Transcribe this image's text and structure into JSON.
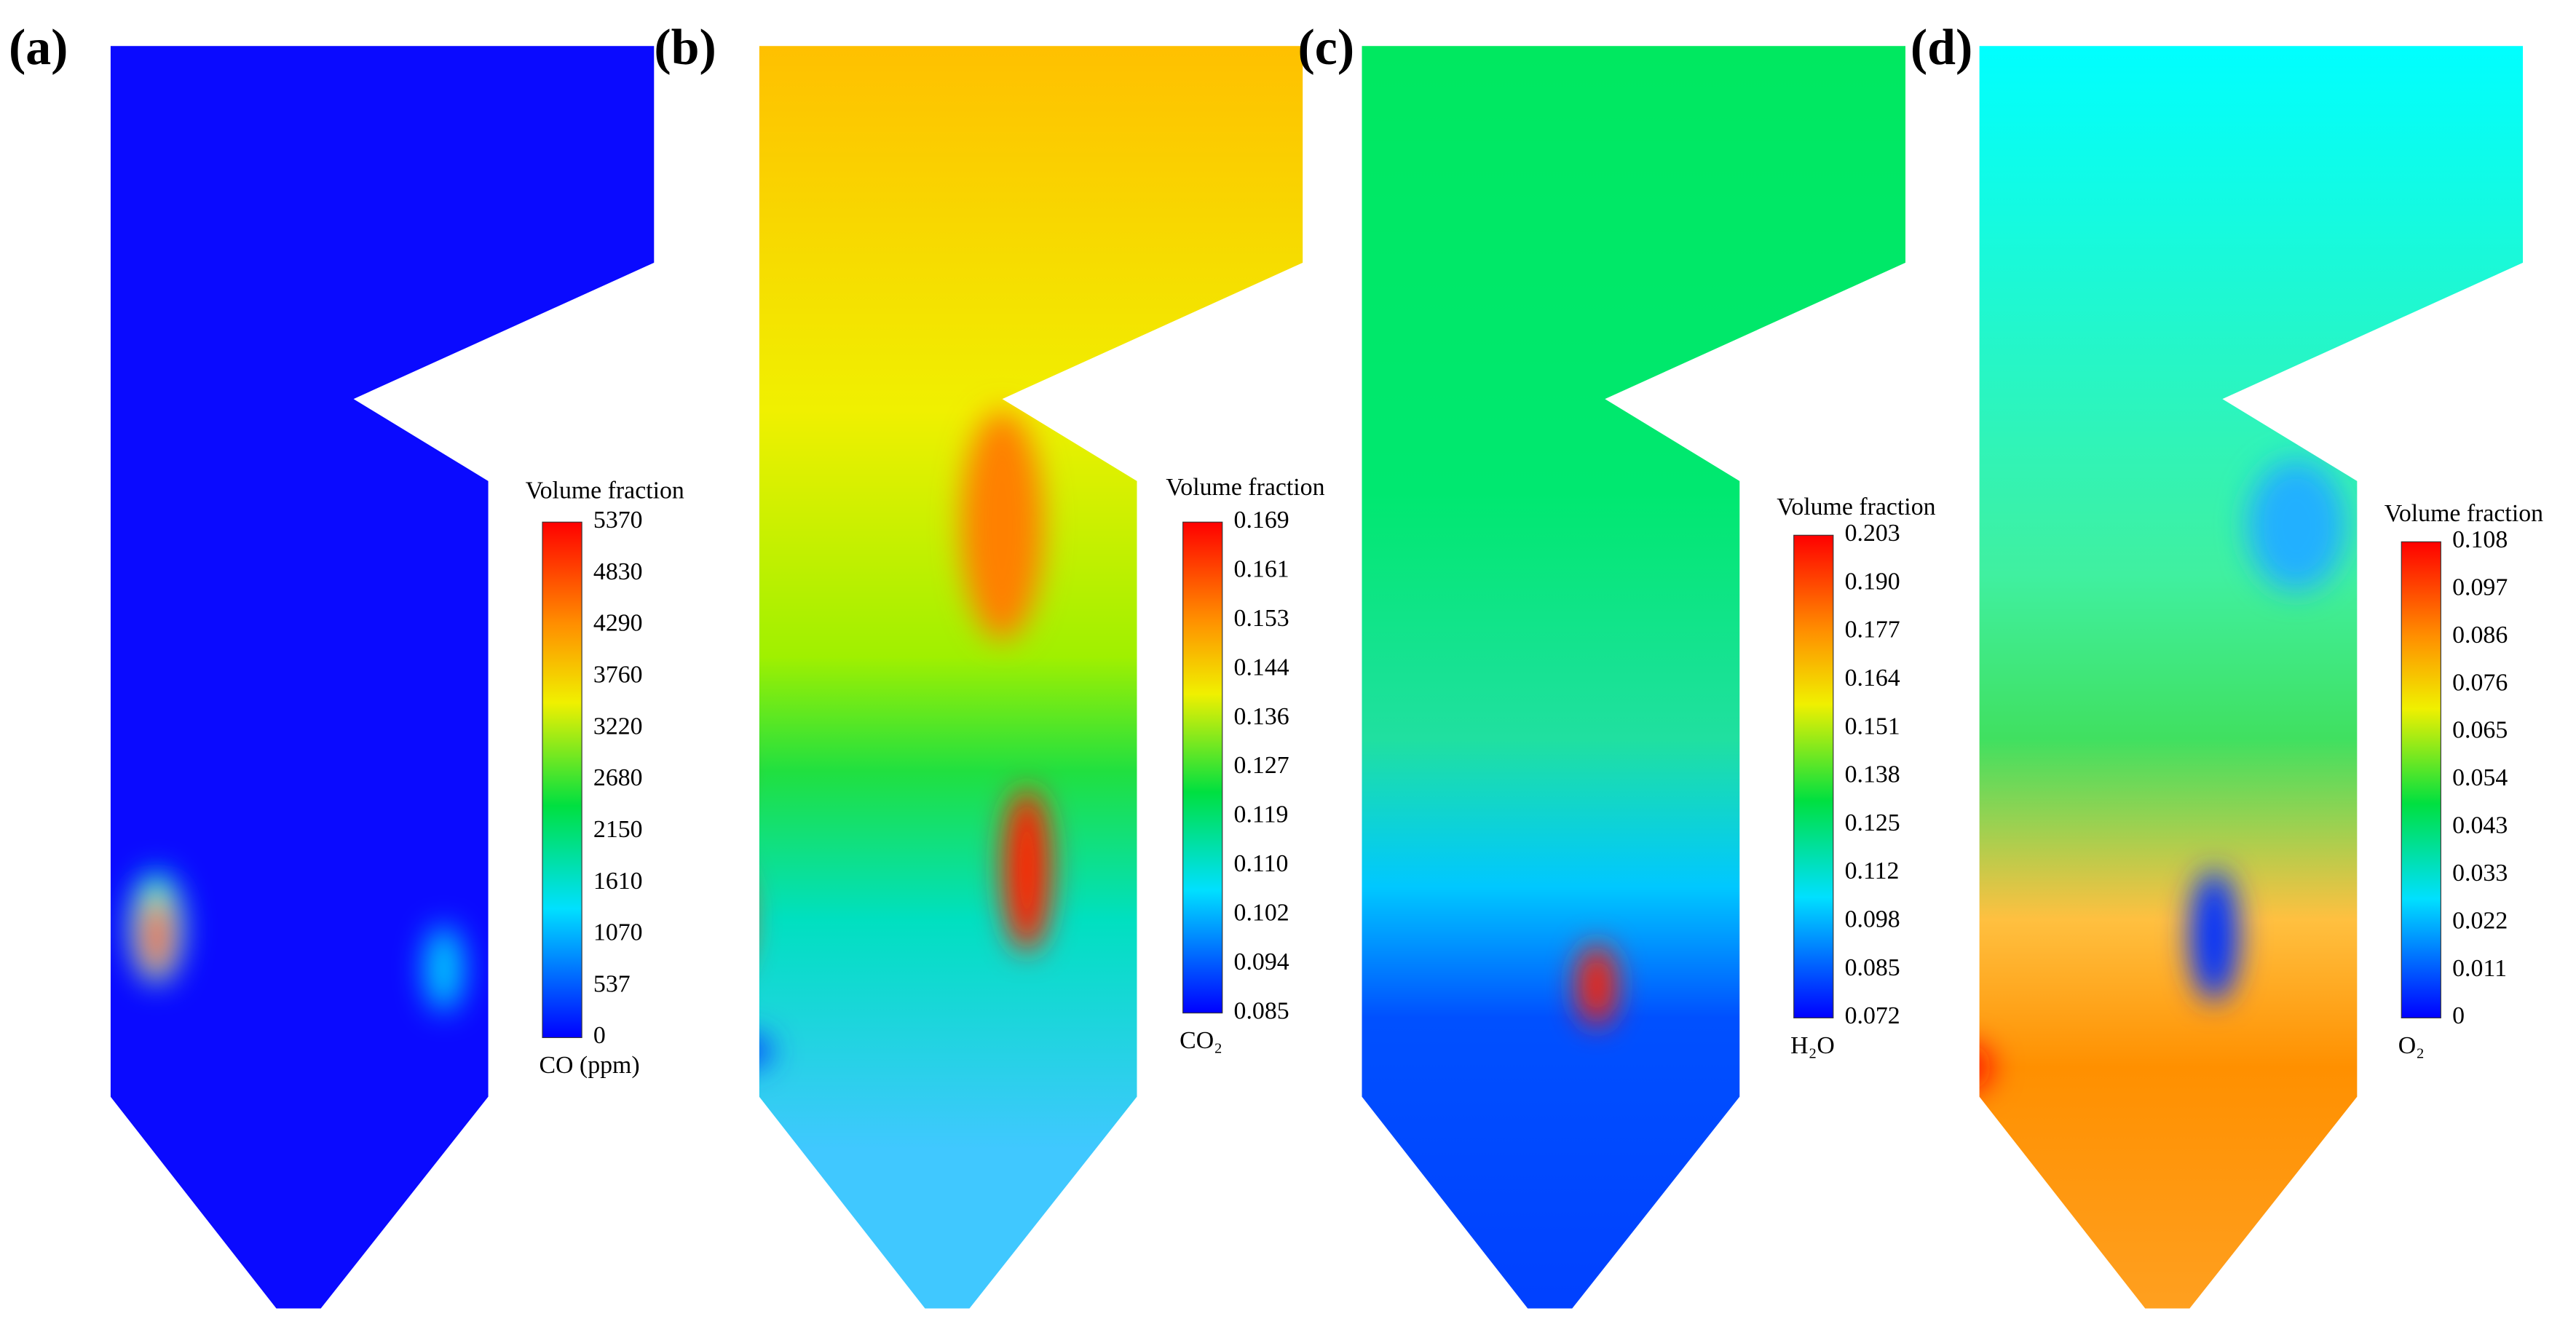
{
  "panels": [
    {
      "label": "(a)",
      "colorbar": {
        "title": "Volume fraction",
        "ticks": [
          "5370",
          "4830",
          "4290",
          "3760",
          "3220",
          "2680",
          "2150",
          "1610",
          "1070",
          "537",
          "0"
        ],
        "quantity": "CO (ppm)"
      }
    },
    {
      "label": "(b)",
      "colorbar": {
        "title": "Volume fraction",
        "ticks": [
          "0.169",
          "0.161",
          "0.153",
          "0.144",
          "0.136",
          "0.127",
          "0.119",
          "0.110",
          "0.102",
          "0.094",
          "0.085"
        ],
        "quantity": "CO₂"
      }
    },
    {
      "label": "(c)",
      "colorbar": {
        "title": "Volume fraction",
        "ticks": [
          "0.203",
          "0.190",
          "0.177",
          "0.164",
          "0.151",
          "0.138",
          "0.125",
          "0.112",
          "0.098",
          "0.085",
          "0.072"
        ],
        "quantity": "H₂O"
      }
    },
    {
      "label": "(d)",
      "colorbar": {
        "title": "Volume fraction",
        "ticks": [
          "0.108",
          "0.097",
          "0.086",
          "0.076",
          "0.065",
          "0.054",
          "0.043",
          "0.033",
          "0.022",
          "0.011",
          "0"
        ],
        "quantity": "O₂"
      }
    }
  ]
}
